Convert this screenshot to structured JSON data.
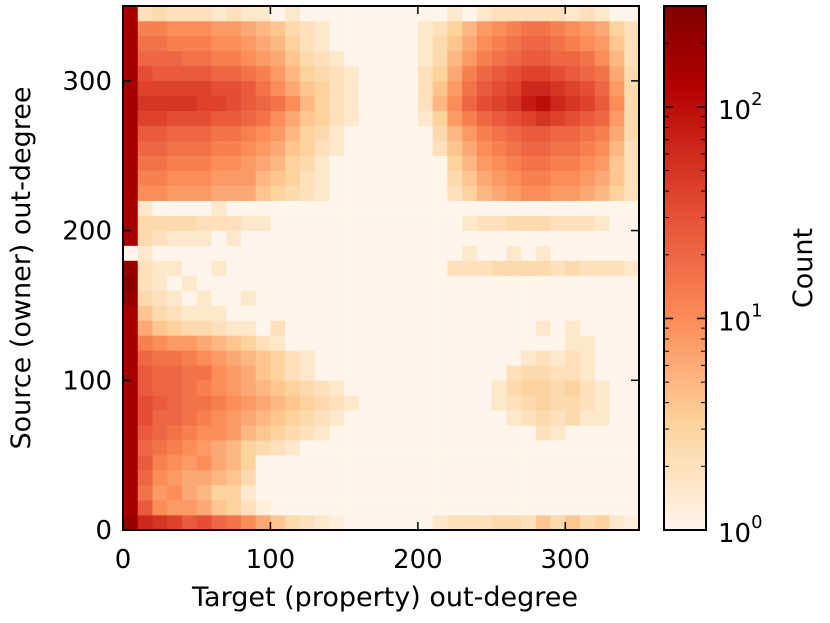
{
  "chart_data": {
    "type": "heatmap",
    "title": "",
    "xlabel": "Target (property) out-degree",
    "ylabel": "Source (owner) out-degree",
    "xlim": [
      0,
      350
    ],
    "ylim": [
      0,
      350
    ],
    "bin_size": 10,
    "x_ticks": [
      0,
      100,
      200,
      300
    ],
    "y_ticks": [
      0,
      100,
      200,
      300
    ],
    "x_tick_labels": [
      "0",
      "100",
      "200",
      "300"
    ],
    "y_tick_labels": [
      "0",
      "100",
      "200",
      "300"
    ],
    "colorbar": {
      "label": "Count",
      "scale": "log",
      "range": [
        1,
        300
      ],
      "ticks": [
        1,
        10,
        100
      ],
      "tick_labels": [
        {
          "base": "10",
          "exp": "0"
        },
        {
          "base": "10",
          "exp": "1"
        },
        {
          "base": "10",
          "exp": "2"
        }
      ],
      "colors": [
        "#fff5eb",
        "#fdd49e",
        "#fc8d59",
        "#e34a33",
        "#b30000",
        "#7f0000"
      ]
    },
    "grid": false,
    "legend": "none",
    "note_rows": "log10 counts per 10x10 bin; rows from y-bin 0 (bottom) to 34 (top); columns x-bin 0..34",
    "log_counts": [
      [
        2.3,
        1.8,
        1.7,
        1.6,
        1.4,
        1.5,
        1.3,
        1.2,
        1.0,
        0.8,
        0.6,
        0.4,
        0.3,
        0.2,
        0.1,
        0.0,
        0.0,
        0.0,
        0.0,
        0.0,
        0.0,
        0.2,
        0.3,
        0.3,
        0.3,
        0.4,
        0.4,
        0.3,
        0.6,
        0.4,
        0.6,
        0.4,
        0.5,
        0.2,
        0.1
      ],
      [
        2.2,
        1.4,
        1.0,
        0.9,
        0.9,
        0.8,
        0.6,
        0.5,
        0.3,
        0.1,
        0.0,
        0.0,
        0.0,
        0.0,
        0.0,
        0.0,
        0.0,
        0.0,
        0.0,
        0.0,
        0.0,
        0.0,
        0.0,
        0.0,
        0.0,
        0.0,
        0.0,
        0.0,
        0.0,
        0.0,
        0.0,
        0.0,
        0.0,
        0.0,
        0.0
      ],
      [
        2.2,
        1.2,
        0.9,
        1.0,
        0.8,
        0.7,
        0.5,
        0.5,
        0.2,
        0.0,
        0.0,
        0.0,
        0.0,
        0.0,
        0.0,
        0.0,
        0.0,
        0.0,
        0.0,
        0.0,
        0.0,
        0.0,
        0.0,
        0.0,
        0.0,
        0.0,
        0.0,
        0.0,
        0.0,
        0.0,
        0.0,
        0.0,
        0.0,
        0.0,
        0.0
      ],
      [
        2.2,
        1.3,
        1.0,
        0.9,
        0.8,
        0.8,
        0.7,
        0.6,
        0.4,
        0.0,
        0.0,
        0.0,
        0.0,
        0.0,
        0.0,
        0.0,
        0.0,
        0.0,
        0.0,
        0.0,
        0.0,
        0.0,
        0.0,
        0.0,
        0.0,
        0.0,
        0.0,
        0.0,
        0.0,
        0.0,
        0.0,
        0.0,
        0.0,
        0.0,
        0.0
      ],
      [
        2.2,
        1.4,
        1.1,
        1.0,
        0.9,
        1.0,
        0.8,
        0.7,
        0.5,
        0.0,
        0.0,
        0.0,
        0.0,
        0.0,
        0.0,
        0.0,
        0.0,
        0.0,
        0.0,
        0.0,
        0.0,
        0.0,
        0.0,
        0.0,
        0.0,
        0.0,
        0.0,
        0.0,
        0.0,
        0.0,
        0.0,
        0.0,
        0.0,
        0.0,
        0.0
      ],
      [
        2.2,
        1.3,
        1.2,
        1.1,
        1.0,
        0.9,
        0.8,
        0.7,
        0.5,
        0.4,
        0.3,
        0.2,
        0.0,
        0.0,
        0.0,
        0.0,
        0.0,
        0.0,
        0.0,
        0.0,
        0.0,
        0.0,
        0.0,
        0.0,
        0.0,
        0.0,
        0.0,
        0.0,
        0.0,
        0.0,
        0.0,
        0.0,
        0.0,
        0.0,
        0.0
      ],
      [
        2.2,
        1.4,
        1.3,
        1.2,
        1.1,
        1.0,
        1.0,
        0.9,
        0.7,
        0.6,
        0.5,
        0.4,
        0.3,
        0.2,
        0.0,
        0.0,
        0.0,
        0.0,
        0.0,
        0.0,
        0.0,
        0.0,
        0.0,
        0.0,
        0.0,
        0.0,
        0.0,
        0.0,
        0.3,
        0.2,
        0.0,
        0.0,
        0.0,
        0.0,
        0.0
      ],
      [
        2.2,
        1.5,
        1.3,
        1.3,
        1.2,
        1.1,
        1.0,
        0.9,
        0.8,
        0.7,
        0.6,
        0.5,
        0.4,
        0.3,
        0.2,
        0.0,
        0.0,
        0.0,
        0.0,
        0.0,
        0.0,
        0.0,
        0.0,
        0.0,
        0.0,
        0.0,
        0.2,
        0.3,
        0.4,
        0.3,
        0.4,
        0.2,
        0.2,
        0.0,
        0.0
      ],
      [
        2.2,
        1.5,
        1.4,
        1.3,
        1.2,
        1.2,
        1.1,
        1.0,
        0.9,
        0.8,
        0.7,
        0.6,
        0.5,
        0.4,
        0.3,
        0.2,
        0.0,
        0.0,
        0.0,
        0.0,
        0.0,
        0.0,
        0.0,
        0.0,
        0.0,
        0.2,
        0.3,
        0.4,
        0.5,
        0.4,
        0.4,
        0.3,
        0.2,
        0.0,
        0.0
      ],
      [
        2.2,
        1.4,
        1.3,
        1.3,
        1.2,
        1.1,
        1.0,
        0.9,
        0.8,
        0.7,
        0.6,
        0.5,
        0.4,
        0.3,
        0.2,
        0.0,
        0.0,
        0.0,
        0.0,
        0.0,
        0.0,
        0.0,
        0.0,
        0.0,
        0.0,
        0.2,
        0.4,
        0.5,
        0.5,
        0.4,
        0.5,
        0.3,
        0.2,
        0.0,
        0.0
      ],
      [
        2.2,
        1.4,
        1.3,
        1.3,
        1.2,
        1.2,
        1.0,
        0.9,
        0.8,
        0.6,
        0.5,
        0.3,
        0.2,
        0.0,
        0.0,
        0.0,
        0.0,
        0.0,
        0.0,
        0.0,
        0.0,
        0.0,
        0.0,
        0.0,
        0.0,
        0.0,
        0.3,
        0.4,
        0.4,
        0.3,
        0.3,
        0.2,
        0.0,
        0.0,
        0.0
      ],
      [
        2.2,
        1.3,
        1.2,
        1.2,
        1.1,
        1.0,
        0.9,
        0.8,
        0.7,
        0.6,
        0.5,
        0.3,
        0.2,
        0.0,
        0.0,
        0.0,
        0.0,
        0.0,
        0.0,
        0.0,
        0.0,
        0.0,
        0.0,
        0.0,
        0.0,
        0.0,
        0.0,
        0.2,
        0.3,
        0.2,
        0.3,
        0.2,
        0.0,
        0.0,
        0.0
      ],
      [
        2.2,
        1.1,
        1.0,
        0.9,
        0.9,
        0.8,
        0.7,
        0.6,
        0.5,
        0.3,
        0.2,
        0.0,
        0.0,
        0.0,
        0.0,
        0.0,
        0.0,
        0.0,
        0.0,
        0.0,
        0.0,
        0.0,
        0.0,
        0.0,
        0.0,
        0.0,
        0.0,
        0.0,
        0.0,
        0.0,
        0.2,
        0.2,
        0.0,
        0.0,
        0.0
      ],
      [
        2.2,
        0.8,
        0.6,
        0.5,
        0.4,
        0.4,
        0.3,
        0.2,
        0.2,
        0.0,
        0.3,
        0.0,
        0.0,
        0.0,
        0.0,
        0.0,
        0.0,
        0.0,
        0.0,
        0.0,
        0.0,
        0.0,
        0.0,
        0.0,
        0.0,
        0.0,
        0.0,
        0.0,
        0.2,
        0.0,
        0.2,
        0.0,
        0.0,
        0.0,
        0.0
      ],
      [
        2.2,
        0.6,
        0.4,
        0.3,
        0.2,
        0.2,
        0.2,
        0.0,
        0.0,
        0.0,
        0.0,
        0.0,
        0.0,
        0.0,
        0.0,
        0.0,
        0.0,
        0.0,
        0.0,
        0.0,
        0.0,
        0.0,
        0.0,
        0.0,
        0.0,
        0.0,
        0.0,
        0.0,
        0.0,
        0.0,
        0.0,
        0.0,
        0.0,
        0.0,
        0.0
      ],
      [
        2.3,
        0.4,
        0.3,
        0.2,
        0.0,
        0.2,
        0.0,
        0.0,
        0.2,
        0.0,
        0.0,
        0.0,
        0.0,
        0.0,
        0.0,
        0.0,
        0.0,
        0.0,
        0.0,
        0.0,
        0.0,
        0.0,
        0.0,
        0.0,
        0.0,
        0.0,
        0.0,
        0.0,
        0.0,
        0.0,
        0.0,
        0.0,
        0.0,
        0.0,
        0.0
      ],
      [
        2.4,
        0.3,
        0.2,
        0.0,
        0.2,
        0.0,
        0.0,
        0.0,
        0.0,
        0.0,
        0.0,
        0.0,
        0.0,
        0.0,
        0.0,
        0.0,
        0.0,
        0.0,
        0.0,
        0.0,
        0.0,
        0.0,
        0.0,
        0.0,
        0.0,
        0.0,
        0.0,
        0.0,
        0.0,
        0.0,
        0.0,
        0.0,
        0.0,
        0.0,
        0.0
      ],
      [
        2.3,
        0.3,
        0.2,
        0.2,
        0.0,
        0.0,
        0.2,
        0.0,
        0.0,
        0.0,
        0.0,
        0.0,
        0.0,
        0.0,
        0.0,
        0.0,
        0.0,
        0.0,
        0.0,
        0.0,
        0.0,
        0.0,
        0.3,
        0.3,
        0.3,
        0.4,
        0.4,
        0.4,
        0.4,
        0.3,
        0.4,
        0.3,
        0.3,
        0.3,
        0.2
      ],
      [
        0.0,
        0.2,
        0.0,
        0.0,
        0.0,
        0.0,
        0.0,
        0.0,
        0.0,
        0.0,
        0.0,
        0.0,
        0.0,
        0.0,
        0.0,
        0.0,
        0.0,
        0.0,
        0.0,
        0.0,
        0.0,
        0.0,
        0.0,
        0.2,
        0.0,
        0.0,
        0.2,
        0.0,
        0.2,
        0.0,
        0.0,
        0.0,
        0.0,
        0.0,
        0.0
      ],
      [
        2.2,
        0.4,
        0.3,
        0.2,
        0.2,
        0.2,
        0.0,
        0.2,
        0.0,
        0.0,
        0.0,
        0.0,
        0.0,
        0.0,
        0.0,
        0.0,
        0.0,
        0.0,
        0.0,
        0.0,
        0.0,
        0.0,
        0.0,
        0.0,
        0.0,
        0.0,
        0.0,
        0.0,
        0.0,
        0.0,
        0.0,
        0.0,
        0.0,
        0.0,
        0.0
      ],
      [
        2.2,
        0.4,
        0.4,
        0.4,
        0.4,
        0.3,
        0.3,
        0.3,
        0.2,
        0.2,
        0.0,
        0.0,
        0.0,
        0.0,
        0.0,
        0.0,
        0.0,
        0.0,
        0.0,
        0.0,
        0.0,
        0.0,
        0.0,
        0.2,
        0.3,
        0.3,
        0.4,
        0.4,
        0.4,
        0.3,
        0.3,
        0.3,
        0.2,
        0.0,
        0.0
      ],
      [
        2.2,
        0.2,
        0.0,
        0.0,
        0.0,
        0.0,
        0.2,
        0.0,
        0.0,
        0.0,
        0.0,
        0.0,
        0.0,
        0.0,
        0.0,
        0.0,
        0.0,
        0.0,
        0.0,
        0.0,
        0.0,
        0.0,
        0.0,
        0.0,
        0.0,
        0.0,
        0.0,
        0.0,
        0.0,
        0.0,
        0.0,
        0.0,
        0.0,
        0.0,
        0.0
      ],
      [
        2.2,
        1.0,
        1.0,
        0.9,
        0.9,
        0.9,
        0.8,
        0.8,
        0.8,
        0.6,
        0.5,
        0.4,
        0.3,
        0.2,
        0.0,
        0.0,
        0.0,
        0.0,
        0.0,
        0.0,
        0.0,
        0.0,
        0.3,
        0.5,
        0.7,
        0.8,
        0.9,
        1.0,
        1.0,
        0.9,
        0.9,
        0.8,
        0.7,
        0.5,
        0.3
      ],
      [
        2.2,
        1.1,
        1.1,
        1.0,
        1.0,
        1.0,
        0.9,
        0.9,
        0.9,
        0.7,
        0.6,
        0.5,
        0.3,
        0.2,
        0.0,
        0.0,
        0.0,
        0.0,
        0.0,
        0.0,
        0.0,
        0.0,
        0.4,
        0.6,
        0.8,
        0.9,
        1.0,
        1.1,
        1.1,
        1.0,
        1.0,
        0.9,
        0.8,
        0.6,
        0.3
      ],
      [
        2.2,
        1.2,
        1.2,
        1.1,
        1.1,
        1.1,
        1.0,
        1.0,
        0.9,
        0.8,
        0.7,
        0.5,
        0.4,
        0.2,
        0.0,
        0.0,
        0.0,
        0.0,
        0.0,
        0.0,
        0.0,
        0.0,
        0.5,
        0.7,
        0.9,
        1.0,
        1.1,
        1.2,
        1.2,
        1.1,
        1.1,
        1.0,
        0.9,
        0.6,
        0.3
      ],
      [
        2.2,
        1.3,
        1.3,
        1.2,
        1.2,
        1.2,
        1.1,
        1.1,
        1.0,
        0.9,
        0.8,
        0.6,
        0.5,
        0.3,
        0.2,
        0.0,
        0.0,
        0.0,
        0.0,
        0.0,
        0.0,
        0.3,
        0.6,
        0.8,
        1.0,
        1.1,
        1.2,
        1.3,
        1.3,
        1.2,
        1.2,
        1.1,
        1.0,
        0.7,
        0.3
      ],
      [
        2.2,
        1.4,
        1.4,
        1.3,
        1.3,
        1.3,
        1.2,
        1.2,
        1.1,
        1.0,
        0.9,
        0.7,
        0.5,
        0.4,
        0.2,
        0.0,
        0.0,
        0.0,
        0.0,
        0.0,
        0.0,
        0.4,
        0.7,
        0.9,
        1.1,
        1.2,
        1.3,
        1.4,
        1.4,
        1.3,
        1.3,
        1.2,
        1.1,
        0.8,
        0.4
      ],
      [
        2.2,
        1.6,
        1.6,
        1.5,
        1.5,
        1.5,
        1.4,
        1.4,
        1.3,
        1.2,
        1.0,
        0.8,
        0.6,
        0.5,
        0.3,
        0.2,
        0.0,
        0.0,
        0.0,
        0.0,
        0.2,
        0.5,
        0.9,
        1.1,
        1.3,
        1.4,
        1.5,
        1.6,
        1.7,
        1.6,
        1.5,
        1.4,
        1.3,
        0.9,
        0.4
      ],
      [
        2.2,
        1.7,
        1.7,
        1.7,
        1.7,
        1.6,
        1.6,
        1.5,
        1.4,
        1.3,
        1.2,
        1.0,
        0.7,
        0.5,
        0.3,
        0.2,
        0.0,
        0.0,
        0.0,
        0.0,
        0.3,
        0.7,
        1.0,
        1.3,
        1.5,
        1.6,
        1.7,
        1.9,
        2.0,
        1.8,
        1.7,
        1.6,
        1.4,
        1.0,
        0.4
      ],
      [
        2.2,
        1.6,
        1.6,
        1.6,
        1.6,
        1.6,
        1.5,
        1.5,
        1.4,
        1.2,
        1.0,
        0.8,
        0.6,
        0.5,
        0.3,
        0.2,
        0.0,
        0.0,
        0.0,
        0.0,
        0.3,
        0.6,
        0.9,
        1.2,
        1.4,
        1.5,
        1.6,
        1.8,
        1.8,
        1.7,
        1.6,
        1.5,
        1.3,
        0.9,
        0.4
      ],
      [
        2.2,
        1.5,
        1.4,
        1.4,
        1.4,
        1.4,
        1.3,
        1.3,
        1.2,
        1.1,
        0.9,
        0.7,
        0.5,
        0.4,
        0.3,
        0.2,
        0.0,
        0.0,
        0.0,
        0.0,
        0.3,
        0.5,
        0.8,
        1.1,
        1.3,
        1.4,
        1.5,
        1.6,
        1.6,
        1.5,
        1.4,
        1.3,
        1.2,
        0.8,
        0.4
      ],
      [
        2.2,
        1.3,
        1.3,
        1.3,
        1.2,
        1.2,
        1.1,
        1.1,
        1.0,
        0.9,
        0.8,
        0.6,
        0.4,
        0.3,
        0.2,
        0.0,
        0.0,
        0.0,
        0.0,
        0.0,
        0.2,
        0.4,
        0.7,
        0.9,
        1.1,
        1.2,
        1.3,
        1.4,
        1.4,
        1.3,
        1.3,
        1.2,
        1.0,
        0.7,
        0.3
      ],
      [
        2.2,
        1.2,
        1.2,
        1.1,
        1.1,
        1.1,
        1.0,
        1.0,
        0.9,
        0.8,
        0.7,
        0.5,
        0.3,
        0.2,
        0.0,
        0.0,
        0.0,
        0.0,
        0.0,
        0.0,
        0.2,
        0.4,
        0.6,
        0.8,
        1.0,
        1.1,
        1.2,
        1.3,
        1.3,
        1.2,
        1.1,
        1.0,
        0.9,
        0.6,
        0.3
      ],
      [
        2.2,
        1.1,
        1.1,
        1.0,
        1.0,
        1.0,
        0.9,
        0.9,
        0.8,
        0.7,
        0.6,
        0.4,
        0.3,
        0.2,
        0.0,
        0.0,
        0.0,
        0.0,
        0.0,
        0.0,
        0.2,
        0.3,
        0.5,
        0.7,
        0.9,
        1.0,
        1.1,
        1.2,
        1.2,
        1.1,
        1.0,
        0.9,
        0.8,
        0.5,
        0.3
      ],
      [
        2.2,
        0.3,
        0.4,
        0.3,
        0.3,
        0.3,
        0.2,
        0.3,
        0.2,
        0.2,
        0.0,
        0.2,
        0.0,
        0.0,
        0.0,
        0.0,
        0.0,
        0.0,
        0.0,
        0.0,
        0.0,
        0.0,
        0.2,
        0.0,
        0.2,
        0.3,
        0.3,
        0.3,
        0.3,
        0.3,
        0.2,
        0.3,
        0.2,
        0.0,
        0.0
      ]
    ]
  }
}
